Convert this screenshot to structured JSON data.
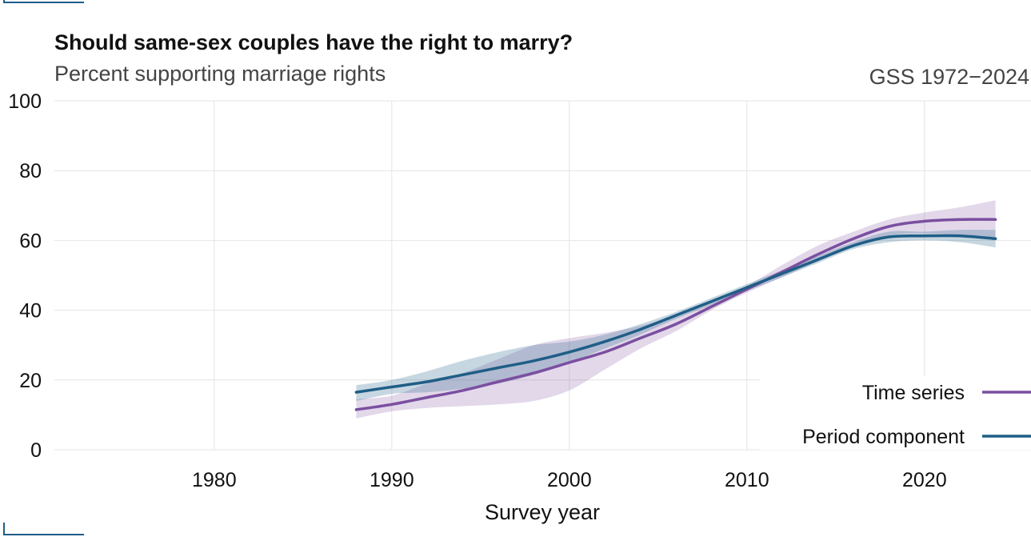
{
  "colors": {
    "time_series": "#7b4fa0",
    "period_component": "#1f5e87",
    "corner_marks": "#1f5e87"
  },
  "chart_data": {
    "type": "line",
    "title": "Should same-sex couples have the right to marry?",
    "subtitle": "Percent supporting marriage rights",
    "source": "GSS 1972−2024",
    "xlabel": "Survey year",
    "ylabel": "",
    "xlim": [
      1971,
      2026
    ],
    "ylim": [
      0,
      100
    ],
    "x_ticks": [
      1980,
      1990,
      2000,
      2010,
      2020
    ],
    "y_ticks": [
      0,
      20,
      40,
      60,
      80,
      100
    ],
    "grid": true,
    "legend_position": "bottom-right",
    "series": [
      {
        "name": "Time series",
        "color": "#7b4fa0",
        "x": [
          1988,
          1990,
          1992,
          1994,
          1996,
          1998,
          2000,
          2002,
          2004,
          2006,
          2008,
          2010,
          2012,
          2014,
          2016,
          2018,
          2020,
          2022,
          2024
        ],
        "y": [
          11.5,
          13,
          15,
          17,
          19.5,
          22,
          25,
          28,
          32,
          36,
          41,
          46,
          51,
          56,
          60.5,
          64,
          65.5,
          66,
          66
        ],
        "lower": [
          9,
          11,
          12,
          12.5,
          13,
          14,
          17,
          23,
          29,
          34,
          40,
          45,
          49.5,
          54,
          58.5,
          61.5,
          62,
          61.5,
          60.5
        ],
        "upper": [
          14.5,
          15.5,
          19,
          22,
          26,
          30,
          32,
          33.5,
          35.5,
          38.5,
          42.5,
          47,
          53,
          58.5,
          62.5,
          66,
          68,
          69.5,
          71.5
        ]
      },
      {
        "name": "Period component",
        "color": "#1f5e87",
        "x": [
          1988,
          1990,
          1992,
          1994,
          1996,
          1998,
          2000,
          2002,
          2004,
          2006,
          2008,
          2010,
          2012,
          2014,
          2016,
          2018,
          2020,
          2022,
          2024
        ],
        "y": [
          16.5,
          18,
          19.5,
          21.5,
          23.5,
          25.5,
          28,
          31,
          34.5,
          38.5,
          42.5,
          46.5,
          50.5,
          54.5,
          58.5,
          61,
          61.3,
          61.3,
          60.5
        ],
        "lower": [
          14,
          16,
          16.5,
          17.5,
          19,
          21.5,
          25,
          29,
          33,
          37.5,
          41.5,
          45.5,
          49.5,
          53.5,
          57.5,
          59.5,
          60,
          59.5,
          58
        ],
        "upper": [
          18.5,
          20,
          22.5,
          25.5,
          28,
          30,
          31,
          33,
          36,
          39.5,
          43.5,
          47.5,
          51.5,
          55.5,
          59.5,
          62.5,
          62.5,
          63,
          63
        ]
      }
    ]
  }
}
